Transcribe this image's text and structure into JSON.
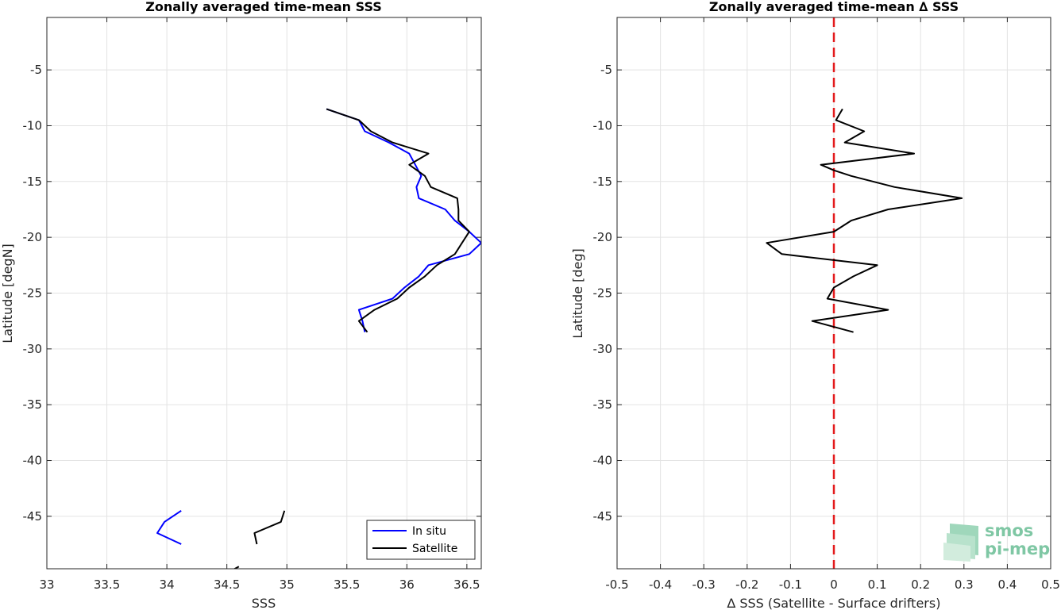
{
  "chart_data": [
    {
      "type": "line",
      "title": "Zonally averaged time-mean SSS",
      "xlabel": "SSS",
      "ylabel": "Latitude [degN]",
      "xlim": [
        33,
        36.62
      ],
      "ylim": [
        -49.7,
        -0.3
      ],
      "xticks": [
        33,
        33.5,
        34,
        34.5,
        35,
        35.5,
        36,
        36.5
      ],
      "yticks": [
        -45,
        -40,
        -35,
        -30,
        -25,
        -20,
        -15,
        -10,
        -5
      ],
      "grid": true,
      "legend_position": "bottom-right",
      "series": [
        {
          "name": "In situ",
          "color": "#0000ff",
          "segments": [
            [
              [
                35.33,
                -8.5
              ],
              [
                35.6,
                -9.5
              ],
              [
                35.65,
                -10.5
              ],
              [
                35.85,
                -11.5
              ],
              [
                36.02,
                -12.5
              ],
              [
                36.07,
                -13.5
              ],
              [
                36.12,
                -14.5
              ],
              [
                36.08,
                -15.5
              ],
              [
                36.1,
                -16.5
              ],
              [
                36.32,
                -17.5
              ],
              [
                36.4,
                -18.5
              ],
              [
                36.52,
                -19.5
              ],
              [
                36.62,
                -20.5
              ],
              [
                36.52,
                -21.5
              ],
              [
                36.18,
                -22.5
              ],
              [
                36.1,
                -23.5
              ],
              [
                35.98,
                -24.5
              ],
              [
                35.88,
                -25.5
              ],
              [
                35.6,
                -26.5
              ],
              [
                35.63,
                -27.5
              ],
              [
                35.65,
                -28.5
              ]
            ],
            [
              [
                34.12,
                -44.5
              ],
              [
                33.98,
                -45.5
              ],
              [
                33.92,
                -46.5
              ],
              [
                34.12,
                -47.5
              ]
            ]
          ]
        },
        {
          "name": "Satellite",
          "color": "#000000",
          "segments": [
            [
              [
                35.33,
                -8.5
              ],
              [
                35.6,
                -9.5
              ],
              [
                35.7,
                -10.5
              ],
              [
                35.88,
                -11.5
              ],
              [
                36.18,
                -12.5
              ],
              [
                36.02,
                -13.5
              ],
              [
                36.15,
                -14.5
              ],
              [
                36.2,
                -15.5
              ],
              [
                36.42,
                -16.5
              ],
              [
                36.43,
                -17.5
              ],
              [
                36.43,
                -18.5
              ],
              [
                36.52,
                -19.5
              ],
              [
                36.46,
                -20.5
              ],
              [
                36.4,
                -21.5
              ],
              [
                36.25,
                -22.5
              ],
              [
                36.15,
                -23.5
              ],
              [
                36.02,
                -24.5
              ],
              [
                35.92,
                -25.5
              ],
              [
                35.73,
                -26.5
              ],
              [
                35.6,
                -27.5
              ],
              [
                35.67,
                -28.5
              ]
            ],
            [
              [
                34.98,
                -44.5
              ],
              [
                34.95,
                -45.5
              ],
              [
                34.73,
                -46.5
              ],
              [
                34.75,
                -47.5
              ]
            ],
            [
              [
                34.6,
                -49.5
              ],
              [
                34.55,
                -49.8
              ]
            ]
          ]
        }
      ]
    },
    {
      "type": "line",
      "title": "Zonally averaged time-mean ∆ SSS",
      "xlabel": "∆ SSS (Satellite - Surface drifters)",
      "ylabel": "Latitude [deg]",
      "xlim": [
        -0.5,
        0.5
      ],
      "ylim": [
        -49.7,
        -0.3
      ],
      "xticks": [
        -0.5,
        -0.4,
        -0.3,
        -0.2,
        -0.1,
        0,
        0.1,
        0.2,
        0.3,
        0.4,
        0.5
      ],
      "yticks": [
        -45,
        -40,
        -35,
        -30,
        -25,
        -20,
        -15,
        -10,
        -5
      ],
      "grid": true,
      "reference_line": {
        "x": 0,
        "color": "#e31a1c",
        "style": "dashed"
      },
      "series": [
        {
          "color": "#000000",
          "segments": [
            [
              [
                0.02,
                -8.5
              ],
              [
                0.005,
                -9.5
              ],
              [
                0.07,
                -10.5
              ],
              [
                0.025,
                -11.5
              ],
              [
                0.185,
                -12.5
              ],
              [
                -0.03,
                -13.5
              ],
              [
                0.0,
                -14
              ],
              [
                0.04,
                -14.5
              ],
              [
                0.14,
                -15.5
              ],
              [
                0.295,
                -16.5
              ],
              [
                0.125,
                -17.5
              ],
              [
                0.04,
                -18.5
              ],
              [
                0.0,
                -19.5
              ],
              [
                -0.155,
                -20.5
              ],
              [
                -0.12,
                -21.5
              ],
              [
                0.1,
                -22.5
              ],
              [
                0.045,
                -23.5
              ],
              [
                0.0,
                -24.5
              ],
              [
                -0.015,
                -25.5
              ],
              [
                0.125,
                -26.5
              ],
              [
                -0.05,
                -27.5
              ],
              [
                0.045,
                -28.5
              ]
            ]
          ]
        }
      ]
    }
  ],
  "logo": {
    "line1": "smos",
    "line2": "pi-mep"
  }
}
